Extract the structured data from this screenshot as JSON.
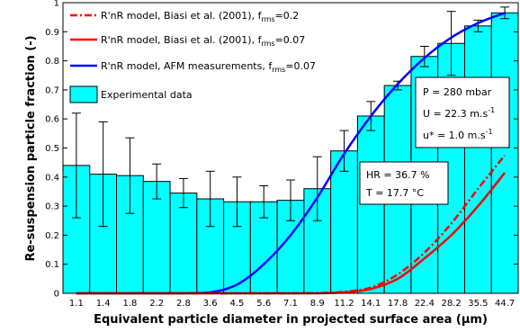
{
  "chart_data": {
    "type": "bar",
    "xlabel": "Equivalent particle diameter in projected surface area (µm)",
    "ylabel": "Re-suspension particle fraction (-)",
    "ylim": [
      0,
      1
    ],
    "yticks": [
      "0",
      "0.1",
      "0.2",
      "0.3",
      "0.4",
      "0.5",
      "0.6",
      "0.7",
      "0.8",
      "0.9",
      "1"
    ],
    "categories": [
      "1.1",
      "1.4",
      "1.8",
      "2.2",
      "2.8",
      "3.6",
      "4.5",
      "5.6",
      "7.1",
      "8.9",
      "11.2",
      "14.1",
      "17.8",
      "22.4",
      "28.2",
      "35.5",
      "44.7"
    ],
    "bars": {
      "name": "Experimental data",
      "color": "#00ffff",
      "values": [
        0.44,
        0.41,
        0.405,
        0.385,
        0.345,
        0.325,
        0.315,
        0.315,
        0.32,
        0.36,
        0.49,
        0.61,
        0.715,
        0.815,
        0.86,
        0.92,
        0.965
      ],
      "err_high": [
        0.62,
        0.59,
        0.535,
        0.445,
        0.395,
        0.42,
        0.4,
        0.37,
        0.39,
        0.47,
        0.56,
        0.66,
        0.73,
        0.85,
        0.97,
        0.94,
        0.985
      ],
      "err_low": [
        0.26,
        0.23,
        0.275,
        0.325,
        0.295,
        0.23,
        0.23,
        0.26,
        0.25,
        0.25,
        0.42,
        0.56,
        0.7,
        0.78,
        0.75,
        0.9,
        0.945
      ]
    },
    "series": [
      {
        "name_main": "R'nR model, Biasi et al. (2001), f",
        "name_sub": "rms",
        "name_tail": "=0.2",
        "color": "#ff0000",
        "style": "dashdot",
        "values": [
          0,
          0,
          0,
          0,
          0,
          0,
          0,
          0,
          0,
          0.001,
          0.005,
          0.02,
          0.065,
          0.14,
          0.24,
          0.36,
          0.475
        ]
      },
      {
        "name_main": "R'nR model, Biasi et al. (2001), f",
        "name_sub": "rms",
        "name_tail": "=0.07",
        "color": "#ff0000",
        "style": "solid",
        "values": [
          0,
          0,
          0,
          0,
          0,
          0,
          0,
          0,
          0,
          0,
          0.003,
          0.015,
          0.05,
          0.12,
          0.2,
          0.3,
          0.415
        ]
      },
      {
        "name_main": "R'nR model, AFM measurements, f",
        "name_sub": "rms",
        "name_tail": "=0.07",
        "color": "#0000ff",
        "style": "solid",
        "values": [
          0,
          0,
          0,
          0,
          0,
          0.003,
          0.03,
          0.1,
          0.2,
          0.33,
          0.48,
          0.61,
          0.72,
          0.81,
          0.88,
          0.93,
          0.965
        ]
      }
    ],
    "legend_position": "top-left",
    "annotations": {
      "conditions": {
        "p": "P = 280 mbar",
        "u_main": "U = 22.3 m.s",
        "u_sup": "-1",
        "ustar_main": "u* = 1.0 m.s",
        "ustar_sup": "-1"
      },
      "humidity": {
        "hr": "HR = 36.7 %",
        "t": "T = 17.7 °C"
      }
    }
  }
}
